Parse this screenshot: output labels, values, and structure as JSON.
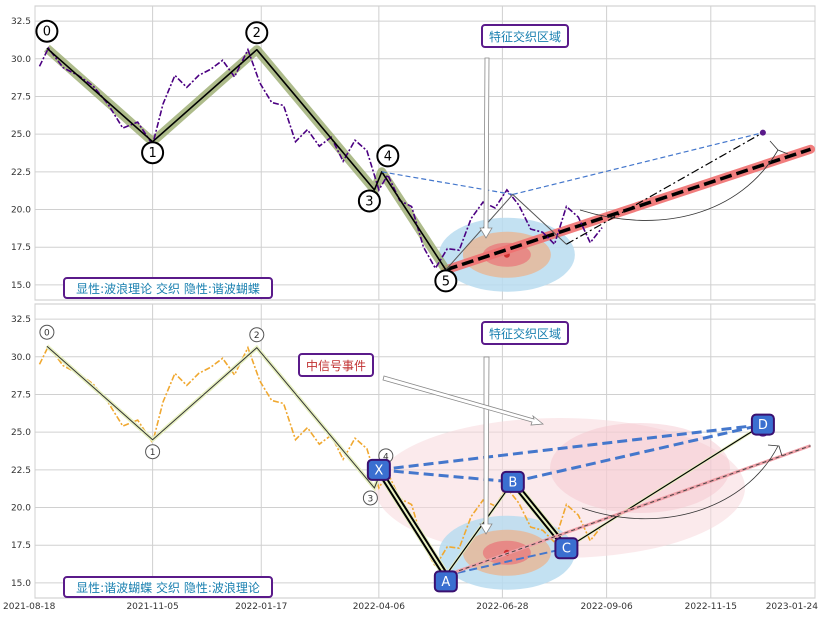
{
  "colors": {
    "price_top": "#4b0082",
    "price_bottom": "#f0a830",
    "wave": "#000000",
    "wave_glow": "#9aab6e",
    "trend_red": "#f07070",
    "dashed_blue": "#4477cc",
    "zone_outer": "#b9dcf0",
    "zone_mid": "#e6b99a",
    "zone_inner": "#e88080",
    "box_border": "#5a1a8a",
    "box_text_blue": "#1a80b0",
    "box_text_red": "#c03030",
    "marker_fill": "#3a6fd0",
    "butterfly_fill": "#f8d8dc",
    "grid": "#d0d0d0"
  },
  "chart_data": [
    {
      "type": "line",
      "panel": "top",
      "x_ticks": [
        "2021-08-18",
        "2021-11-05",
        "2022-01-17",
        "2022-04-06",
        "2022-06-28",
        "2022-09-06",
        "2022-11-15",
        "2023-01-24"
      ],
      "y_ticks": [
        "15.0",
        "17.5",
        "20.0",
        "22.5",
        "25.0",
        "27.5",
        "30.0",
        "32.5"
      ],
      "ylim": [
        14.0,
        33.5
      ],
      "xlim": [
        "2021-08-18",
        "2023-01-24"
      ],
      "grid": true,
      "series": [
        {
          "x": [
            "2021-08-21",
            "2021-08-27",
            "2021-09-06",
            "2021-09-16",
            "2021-09-26",
            "2021-10-06",
            "2021-10-16",
            "2021-10-26",
            "2021-11-05",
            "2021-11-12",
            "2021-11-20",
            "2021-11-28",
            "2021-12-06",
            "2021-12-14",
            "2021-12-22",
            "2021-12-30",
            "2022-01-08",
            "2022-01-16",
            "2022-01-24",
            "2022-02-01",
            "2022-02-09",
            "2022-02-17",
            "2022-02-25",
            "2022-03-05",
            "2022-03-13",
            "2022-03-21",
            "2022-03-29",
            "2022-04-06",
            "2022-04-12",
            "2022-04-20",
            "2022-04-28",
            "2022-05-06",
            "2022-05-14",
            "2022-05-22",
            "2022-05-30",
            "2022-06-07",
            "2022-06-15",
            "2022-06-23",
            "2022-07-01",
            "2022-07-09",
            "2022-07-17",
            "2022-07-25",
            "2022-08-02",
            "2022-08-10",
            "2022-08-18",
            "2022-08-26",
            "2022-09-03"
          ],
          "values": [
            29.5,
            30.7,
            29.4,
            28.9,
            28.2,
            27.0,
            25.4,
            25.8,
            24.3,
            27.0,
            28.9,
            28.1,
            28.9,
            29.3,
            29.9,
            28.8,
            30.6,
            28.4,
            27.1,
            26.9,
            24.5,
            25.3,
            24.2,
            24.8,
            23.2,
            24.6,
            23.9,
            21.3,
            22.3,
            20.6,
            20.2,
            17.5,
            16.1,
            17.4,
            17.3,
            19.4,
            20.5,
            20.1,
            21.3,
            20.3,
            18.7,
            18.5,
            17.7,
            20.2,
            19.5,
            17.8,
            18.8
          ]
        }
      ],
      "wave_points": [
        {
          "label": "0",
          "x": "2021-08-26",
          "y": 30.7
        },
        {
          "label": "1",
          "x": "2021-11-05",
          "y": 24.5
        },
        {
          "label": "2",
          "x": "2022-01-14",
          "y": 30.6
        },
        {
          "label": "3",
          "x": "2022-04-03",
          "y": 21.3
        },
        {
          "label": "4",
          "x": "2022-04-08",
          "y": 22.5
        },
        {
          "label": "5",
          "x": "2022-05-21",
          "y": 16.0
        }
      ],
      "annotations": [
        "特征交织区域",
        "显性:波浪理论 交织 隐性:谐波蝴蝶"
      ]
    },
    {
      "type": "line",
      "panel": "bottom",
      "x_ticks": [
        "2021-08-18",
        "2021-11-05",
        "2022-01-17",
        "2022-04-06",
        "2022-06-28",
        "2022-09-06",
        "2022-11-15",
        "2023-01-24"
      ],
      "y_ticks": [
        "15.0",
        "17.5",
        "20.0",
        "22.5",
        "25.0",
        "27.5",
        "30.0",
        "32.5"
      ],
      "ylim": [
        14.0,
        33.5
      ],
      "xlim": [
        "2021-08-18",
        "2023-01-24"
      ],
      "grid": true,
      "harmonic_points": [
        {
          "label": "X",
          "x": "2022-04-06",
          "y": 22.5
        },
        {
          "label": "A",
          "x": "2022-05-21",
          "y": 15.5
        },
        {
          "label": "B",
          "x": "2022-07-05",
          "y": 21.7
        },
        {
          "label": "C",
          "x": "2022-08-10",
          "y": 17.3
        },
        {
          "label": "D",
          "x": "2022-12-20",
          "y": 25.5
        }
      ],
      "wave_points": [
        {
          "label": "0",
          "x": "2021-08-26",
          "y": 30.7
        },
        {
          "label": "1",
          "x": "2021-11-05",
          "y": 24.5
        },
        {
          "label": "2",
          "x": "2022-01-14",
          "y": 30.6
        },
        {
          "label": "3",
          "x": "2022-04-03",
          "y": 21.3
        },
        {
          "label": "4",
          "x": "2022-04-08",
          "y": 22.5
        }
      ],
      "annotations": [
        "特征交织区域",
        "中信号事件",
        "显性:谐波蝴蝶 交织 隐性:波浪理论"
      ]
    }
  ],
  "labels": {
    "top_zone": "特征交织区域",
    "top_caption": "显性:波浪理论 交织 隐性:谐波蝴蝶",
    "bottom_zone": "特征交织区域",
    "bottom_event": "中信号事件",
    "bottom_caption": "显性:谐波蝴蝶 交织 隐性:波浪理论"
  }
}
